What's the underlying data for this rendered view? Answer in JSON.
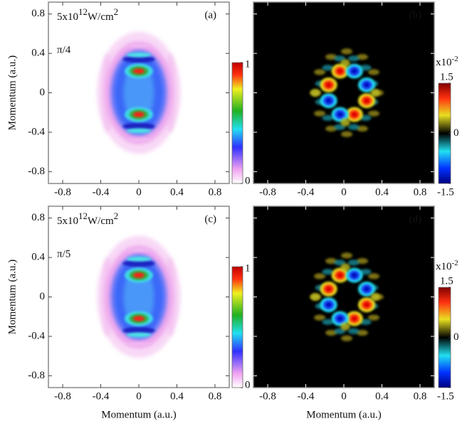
{
  "chart_data": [
    {
      "type": "heatmap",
      "colormap": "rainbow",
      "panel_label": "(a)",
      "intensity": {
        "base": "5x10",
        "exponent": "12",
        "unit": "W/cm",
        "unit_exponent": "2"
      },
      "annotation": "π/4",
      "ylabel": "Momentum (a.u.)",
      "xlim": [
        -0.95,
        0.95
      ],
      "ylim": [
        -0.92,
        0.92
      ],
      "xticks": [
        -0.8,
        -0.4,
        0,
        0.4,
        0.8
      ],
      "yticks": [
        -0.8,
        -0.4,
        0,
        0.4,
        0.8
      ],
      "colorbar": {
        "lim": [
          0,
          1
        ],
        "ticks": [
          0,
          1
        ]
      }
    },
    {
      "type": "heatmap",
      "colormap": "diverging",
      "panel_label": "(b)",
      "xlim": [
        -0.95,
        0.95
      ],
      "ylim": [
        -0.92,
        0.92
      ],
      "xticks": [
        -0.8,
        -0.4,
        0,
        0.4,
        0.8
      ],
      "yticks": [
        -0.8,
        -0.4,
        0,
        0.4,
        0.8
      ],
      "colorbar": {
        "lim": [
          -1.5,
          1.5
        ],
        "ticks": [
          -1.5,
          0,
          1.5
        ],
        "multiplier": {
          "base": "x10",
          "exponent": "-2"
        }
      }
    },
    {
      "type": "heatmap",
      "colormap": "rainbow",
      "panel_label": "(c)",
      "intensity": {
        "base": "5x10",
        "exponent": "12",
        "unit": "W/cm",
        "unit_exponent": "2"
      },
      "annotation": "π/5",
      "ylabel": "Momentum (a.u.)",
      "xlabel": "Momentum (a.u.)",
      "xlim": [
        -0.95,
        0.95
      ],
      "ylim": [
        -0.92,
        0.92
      ],
      "xticks": [
        -0.8,
        -0.4,
        0,
        0.4,
        0.8
      ],
      "yticks": [
        -0.8,
        -0.4,
        0,
        0.4,
        0.8
      ],
      "colorbar": {
        "lim": [
          0,
          1
        ],
        "ticks": [
          0,
          1
        ]
      }
    },
    {
      "type": "heatmap",
      "colormap": "diverging",
      "panel_label": "(d)",
      "xlabel": "Momentum (a.u.)",
      "xlim": [
        -0.95,
        0.95
      ],
      "ylim": [
        -0.92,
        0.92
      ],
      "xticks": [
        -0.8,
        -0.4,
        0,
        0.4,
        0.8
      ],
      "yticks": [
        -0.8,
        -0.4,
        0,
        0.4,
        0.8
      ],
      "colorbar": {
        "lim": [
          -1.5,
          1.5
        ],
        "ticks": [
          -1.5,
          0,
          1.5
        ],
        "multiplier": {
          "base": "x10",
          "exponent": "-2"
        }
      }
    }
  ]
}
